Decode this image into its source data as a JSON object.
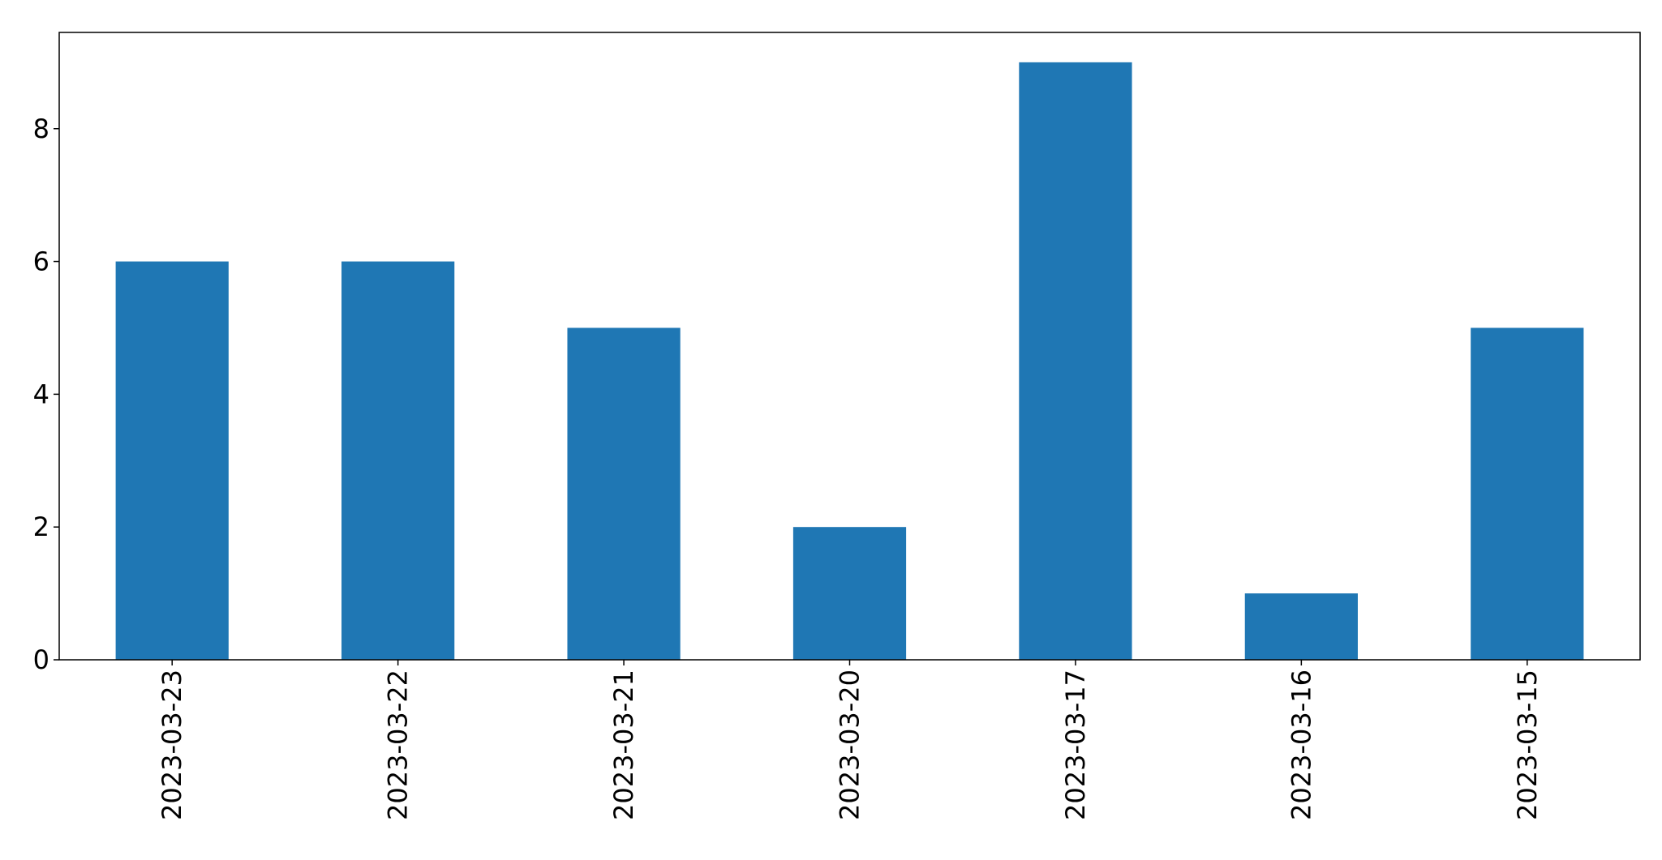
{
  "chart_data": {
    "type": "bar",
    "title": "",
    "xlabel": "",
    "ylabel": "",
    "categories": [
      "2023-03-23",
      "2023-03-22",
      "2023-03-21",
      "2023-03-20",
      "2023-03-17",
      "2023-03-16",
      "2023-03-15"
    ],
    "values": [
      6,
      6,
      5,
      2,
      9,
      1,
      5
    ],
    "ylim": [
      0,
      9.45
    ],
    "yticks": [
      0,
      2,
      4,
      6,
      8
    ],
    "grid": false,
    "legend": "none",
    "bar_color": "#1f77b4",
    "x_tick_rotation_deg": 90
  }
}
